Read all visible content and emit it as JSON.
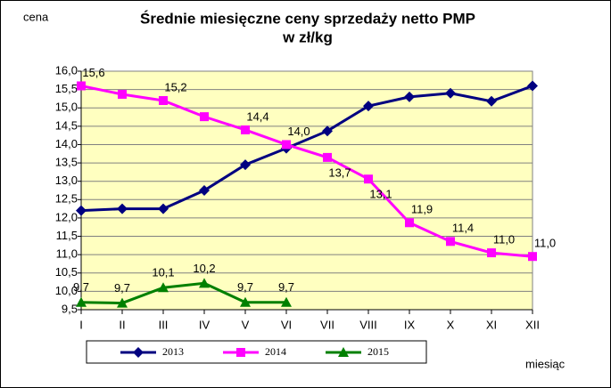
{
  "chart_data": {
    "type": "line",
    "title": "Średnie miesięczne ceny sprzedaży netto PMP",
    "subtitle": "w zł/kg",
    "y_label": "cena",
    "x_label": "miesiąc",
    "categories": [
      "I",
      "II",
      "III",
      "IV",
      "V",
      "VI",
      "VII",
      "VIII",
      "IX",
      "X",
      "XI",
      "XII"
    ],
    "series": [
      {
        "name": "2013",
        "color": "#000080",
        "marker": "diamond",
        "values": [
          12.2,
          12.25,
          12.25,
          12.75,
          13.45,
          13.9,
          14.37,
          15.05,
          15.3,
          15.4,
          15.18,
          15.6
        ]
      },
      {
        "name": "2014",
        "color": "#ff00ff",
        "marker": "square",
        "values": [
          15.6,
          15.37,
          15.2,
          14.76,
          14.4,
          14.0,
          13.65,
          13.06,
          11.87,
          11.36,
          11.05,
          10.95
        ],
        "value_labels": [
          "15,6",
          null,
          "15,2",
          null,
          "14,4",
          "14,0",
          "13,7",
          "13,1",
          "11,9",
          "11,4",
          "11,0",
          "11,0"
        ]
      },
      {
        "name": "2015",
        "color": "#008000",
        "marker": "triangle",
        "values": [
          9.7,
          9.68,
          10.1,
          10.22,
          9.7,
          9.7,
          null,
          null,
          null,
          null,
          null,
          null
        ],
        "value_labels": [
          "9,7",
          "9,7",
          "10,1",
          "10,2",
          "9,7",
          "9,7",
          null,
          null,
          null,
          null,
          null,
          null
        ]
      }
    ],
    "ylim": [
      9.5,
      16.0
    ],
    "yticks": [
      {
        "value": 9.5,
        "label": "9,5"
      },
      {
        "value": 10.0,
        "label": "10,0"
      },
      {
        "value": 10.5,
        "label": "10,5"
      },
      {
        "value": 11.0,
        "label": "11,0"
      },
      {
        "value": 11.5,
        "label": "11,5"
      },
      {
        "value": 12.0,
        "label": "12,0"
      },
      {
        "value": 12.5,
        "label": "12,5"
      },
      {
        "value": 13.0,
        "label": "13,0"
      },
      {
        "value": 13.5,
        "label": "13,5"
      },
      {
        "value": 14.0,
        "label": "14,0"
      },
      {
        "value": 14.5,
        "label": "14,5"
      },
      {
        "value": 15.0,
        "label": "15,0"
      },
      {
        "value": 15.5,
        "label": "15,5"
      },
      {
        "value": 16.0,
        "label": "16,0"
      }
    ],
    "grid": true,
    "legend": "bottom"
  }
}
